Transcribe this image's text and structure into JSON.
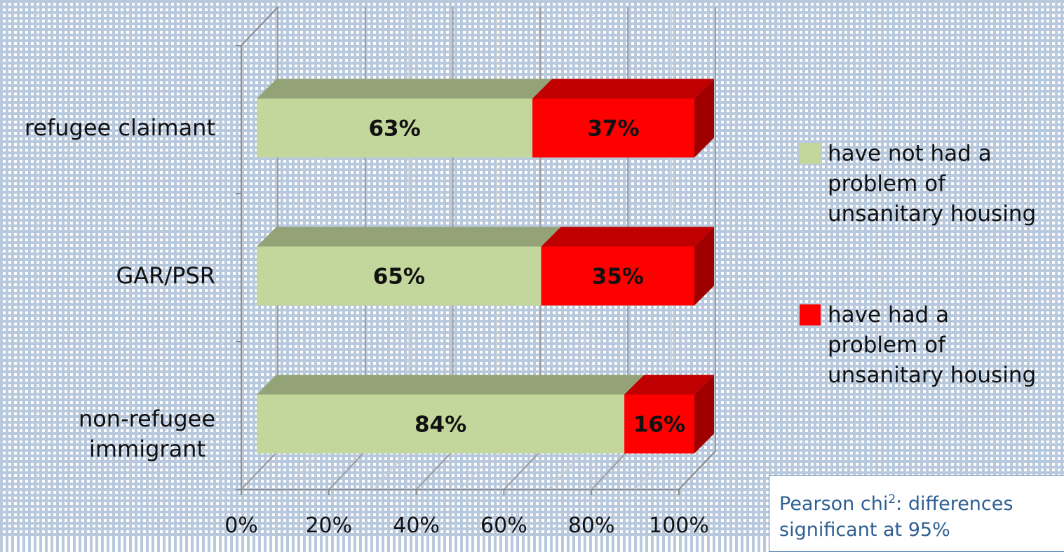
{
  "chart_data": {
    "type": "bar",
    "orientation": "horizontal",
    "stacked": true,
    "categories": [
      "refugee claimant",
      "GAR/PSR",
      "non-refugee immigrant"
    ],
    "category_lines": [
      [
        "refugee claimant"
      ],
      [
        "GAR/PSR"
      ],
      [
        "non-refugee",
        "immigrant"
      ]
    ],
    "series": [
      {
        "name": "have not had a problem of unsanitary housing",
        "values": [
          63,
          65,
          84
        ],
        "labels": [
          "63%",
          "65%",
          "84%"
        ],
        "color": "#c3d69b"
      },
      {
        "name": "have had a problem of unsanitary housing",
        "values": [
          37,
          35,
          16
        ],
        "labels": [
          "37%",
          "35%",
          "16%"
        ],
        "color": "#ff0000"
      }
    ],
    "xlim": [
      0,
      100
    ],
    "x_ticks": [
      "0%",
      "20%",
      "40%",
      "60%",
      "80%",
      "100%"
    ],
    "grid": true,
    "legend_position": "right"
  },
  "legend": [
    {
      "lines": [
        "have not had a",
        "problem of",
        "unsanitary housing"
      ],
      "color": "#c3d69b"
    },
    {
      "lines": [
        "have had a",
        "problem of",
        "unsanitary housing"
      ],
      "color": "#ff0000"
    }
  ],
  "note": {
    "prefix": "Pearson chi",
    "sup": "2",
    "suffix": ": differences",
    "line2": "significant at 95%"
  }
}
